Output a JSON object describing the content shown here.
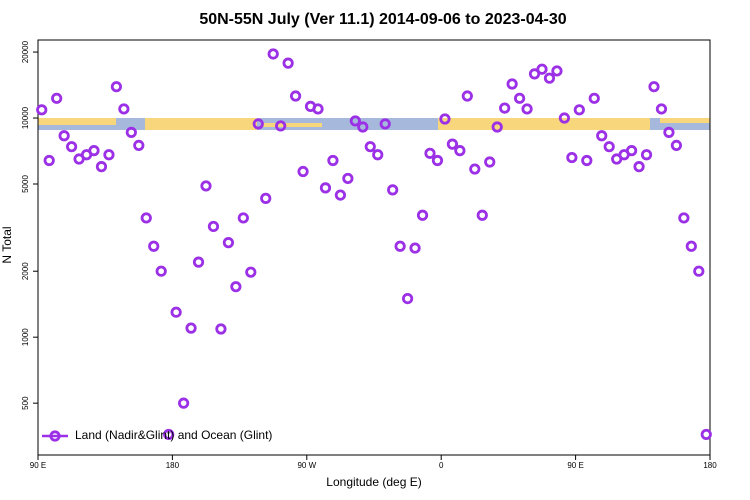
{
  "chart_data": {
    "type": "scatter",
    "title": "50N-55N July (Ver 11.1)   2014-09-06 to 2023-04-30",
    "x_label": "Longitude (deg E)",
    "y_label": "N Total",
    "log_y": true,
    "xlim": [
      90,
      540
    ],
    "xticks": [
      {
        "value": 90,
        "label": "90 E"
      },
      180,
      {
        "value": 270,
        "label": "90 W"
      },
      {
        "value": 360,
        "label": "0"
      },
      {
        "value": 450,
        "label": "90 E"
      },
      {
        "value": 540,
        "label": "180"
      }
    ],
    "ylim": [
      290,
      22700
    ],
    "yticks": [
      500,
      1000,
      2000,
      5000,
      10000,
      20000
    ],
    "legend_position": "lower left",
    "x": [
      92.5,
      97.5,
      102.5,
      107.5,
      112.5,
      117.5,
      122.5,
      127.5,
      132.5,
      137.5,
      142.5,
      147.5,
      152.5,
      157.5,
      162.5,
      167.5,
      172.5,
      177.5,
      182.5,
      187.5,
      192.5,
      197.5,
      202.5,
      207.5,
      212.5,
      217.5,
      222.5,
      227.5,
      232.5,
      237.5,
      242.5,
      247.5,
      252.5,
      257.5,
      262.5,
      267.5,
      272.5,
      277.5,
      282.5,
      287.5,
      292.5,
      297.5,
      302.5,
      307.5,
      312.5,
      317.5,
      322.5,
      327.5,
      332.5,
      337.5,
      342.5,
      347.5,
      352.5,
      357.5,
      362.5,
      367.5,
      372.5,
      377.5,
      382.5,
      387.5,
      392.5,
      397.5,
      402.5,
      407.5,
      412.5,
      417.5,
      422.5,
      427.5,
      432.5,
      437.5,
      442.5,
      447.5,
      452.5,
      457.5,
      462.5,
      467.5,
      472.5,
      477.5,
      482.5,
      487.5,
      492.5,
      497.5,
      502.5,
      507.5,
      512.5,
      517.5,
      522.5,
      527.5,
      532.5,
      537.5
    ],
    "series": [
      {
        "name": "Land (Nadir&Glint) and Ocean (Glint)",
        "color": "#9b30e6",
        "values": [
          10900,
          6400,
          12300,
          8300,
          7400,
          6500,
          6800,
          7100,
          6000,
          6800,
          13900,
          11000,
          8600,
          7500,
          3500,
          2600,
          2000,
          360,
          1300,
          500,
          1100,
          2200,
          4900,
          3200,
          1090,
          2700,
          1700,
          3500,
          1980,
          9400,
          4300,
          19600,
          9200,
          17800,
          12600,
          5700,
          11300,
          11000,
          4800,
          6400,
          4450,
          5300,
          9700,
          9100,
          7400,
          6800,
          9400,
          4700,
          2600,
          1500,
          2550,
          3600,
          6900,
          6400,
          9900,
          7600,
          7100,
          12600,
          5850,
          3600,
          6300,
          9100,
          11100,
          14300,
          12300,
          11000,
          15900,
          16700,
          15200,
          16400,
          10000,
          6600,
          10900,
          6400,
          12300,
          8300,
          7400,
          6500,
          6800,
          7100,
          6000,
          6800,
          13900,
          11000,
          8600,
          7500,
          3500,
          2600,
          2000,
          360
        ]
      }
    ]
  }
}
